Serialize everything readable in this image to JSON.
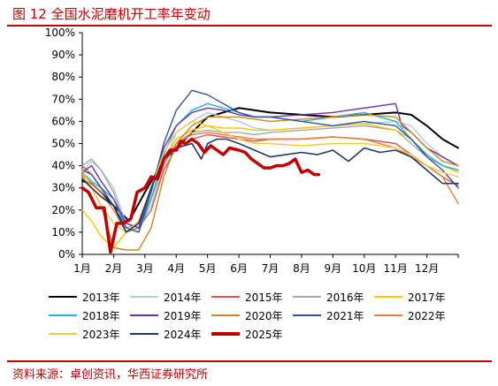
{
  "title": "图 12 全国水泥磨机开工率年变动",
  "source": "资料来源：卓创资讯，华西证券研究所",
  "chart_data": {
    "type": "line",
    "xlabel": "",
    "ylabel": "",
    "x_ticks": [
      "1月",
      "2月",
      "3月",
      "4月",
      "5月",
      "6月",
      "7月",
      "8月",
      "9月",
      "10月",
      "11月",
      "12月"
    ],
    "y_ticks": [
      "0%",
      "10%",
      "20%",
      "30%",
      "40%",
      "50%",
      "60%",
      "70%",
      "80%",
      "90%",
      "100%"
    ],
    "ylim": [
      0,
      100
    ],
    "xlim": [
      1,
      13
    ],
    "grid": false,
    "legend_position": "bottom",
    "series": [
      {
        "name": "2013年",
        "color": "#000000",
        "width": 2,
        "x": [
          1,
          1.3,
          1.6,
          2,
          2.5,
          3,
          3.5,
          4,
          4.5,
          5,
          6,
          7,
          8,
          9,
          10,
          11,
          11.5,
          12,
          12.5,
          13
        ],
        "y": [
          33,
          32,
          28,
          22,
          15,
          28,
          40,
          48,
          55,
          62,
          66,
          64,
          63,
          62,
          63,
          64,
          63,
          58,
          52,
          48
        ]
      },
      {
        "name": "2014年",
        "color": "#a9cce3",
        "width": 1.4,
        "x": [
          1,
          1.3,
          1.6,
          2,
          2.4,
          2.8,
          3.2,
          3.6,
          4,
          4.5,
          5,
          5.5,
          6,
          6.5,
          7,
          8,
          9,
          10,
          11,
          11.5,
          12,
          12.5,
          13
        ],
        "y": [
          37,
          42,
          38,
          30,
          14,
          12,
          22,
          40,
          55,
          60,
          64,
          62,
          60,
          57,
          56,
          57,
          58,
          59,
          60,
          58,
          50,
          44,
          40
        ]
      },
      {
        "name": "2015年",
        "color": "#e05252",
        "width": 1.4,
        "x": [
          1,
          1.3,
          1.6,
          2,
          2.4,
          2.8,
          3.2,
          3.6,
          4,
          4.5,
          5,
          5.5,
          6,
          6.5,
          7,
          8,
          9,
          10,
          11,
          11.5,
          12,
          12.5,
          13
        ],
        "y": [
          40,
          36,
          30,
          22,
          10,
          12,
          20,
          38,
          48,
          52,
          54,
          53,
          52,
          51,
          52,
          52,
          53,
          52,
          50,
          45,
          40,
          35,
          31
        ]
      },
      {
        "name": "2016年",
        "color": "#a6a6a6",
        "width": 1.4,
        "x": [
          1,
          1.3,
          1.6,
          2,
          2.4,
          2.8,
          3.2,
          3.6,
          4,
          4.5,
          5,
          5.5,
          6,
          6.5,
          7,
          8,
          9,
          10,
          11,
          11.5,
          12,
          12.5,
          13
        ],
        "y": [
          40,
          43,
          38,
          28,
          12,
          14,
          25,
          40,
          50,
          55,
          56,
          55,
          55,
          54,
          55,
          56,
          57,
          58,
          56,
          50,
          44,
          40,
          38
        ]
      },
      {
        "name": "2017年",
        "color": "#ffc000",
        "width": 1.4,
        "x": [
          1,
          1.3,
          1.6,
          2,
          2.4,
          2.8,
          3.2,
          3.6,
          4,
          4.5,
          5,
          5.5,
          6,
          6.5,
          7,
          8,
          9,
          10,
          11,
          11.5,
          12,
          12.5,
          13
        ],
        "y": [
          20,
          15,
          8,
          3,
          10,
          15,
          25,
          42,
          52,
          56,
          58,
          57,
          57,
          56,
          56,
          57,
          58,
          59,
          56,
          52,
          45,
          40,
          37
        ]
      },
      {
        "name": "2018年",
        "color": "#1fb2e6",
        "width": 1.4,
        "x": [
          1,
          1.3,
          1.6,
          2,
          2.4,
          2.8,
          3.2,
          3.6,
          4,
          4.5,
          5,
          5.5,
          6,
          6.5,
          7,
          8,
          9,
          10,
          11,
          11.5,
          12,
          12.5,
          13
        ],
        "y": [
          37,
          33,
          30,
          25,
          12,
          10,
          25,
          45,
          58,
          65,
          68,
          66,
          64,
          62,
          62,
          60,
          62,
          64,
          60,
          52,
          45,
          40,
          38
        ]
      },
      {
        "name": "2019年",
        "color": "#7030a0",
        "width": 1.4,
        "x": [
          1,
          1.3,
          1.6,
          2,
          2.4,
          2.8,
          3.2,
          3.6,
          4,
          4.5,
          5,
          5.5,
          6,
          6.5,
          7,
          8,
          9,
          10,
          11,
          11.2,
          11.5,
          12,
          12.5,
          13
        ],
        "y": [
          37,
          40,
          33,
          25,
          14,
          12,
          30,
          48,
          58,
          64,
          66,
          65,
          63,
          62,
          62,
          63,
          64,
          66,
          68,
          58,
          55,
          48,
          44,
          40
        ]
      },
      {
        "name": "2020年",
        "color": "#c98a1b",
        "width": 1.4,
        "x": [
          1,
          1.3,
          1.6,
          2,
          2.4,
          2.8,
          3.2,
          3.6,
          4,
          4.5,
          5,
          5.5,
          6,
          6.5,
          7,
          8,
          9,
          10,
          11,
          11.5,
          12,
          12.5,
          13
        ],
        "y": [
          35,
          30,
          22,
          3,
          2,
          2,
          12,
          35,
          50,
          58,
          62,
          62,
          62,
          61,
          60,
          61,
          62,
          63,
          62,
          55,
          48,
          42,
          40
        ]
      },
      {
        "name": "2021年",
        "color": "#2f5597",
        "width": 1.4,
        "x": [
          1,
          1.3,
          1.6,
          2,
          2.4,
          2.8,
          3.2,
          3.6,
          4,
          4.5,
          5,
          5.5,
          6,
          6.5,
          7,
          8,
          9,
          10,
          11,
          11.5,
          12,
          12.5,
          13
        ],
        "y": [
          38,
          36,
          30,
          22,
          12,
          10,
          28,
          50,
          65,
          74,
          72,
          68,
          64,
          62,
          62,
          60,
          58,
          60,
          58,
          52,
          44,
          38,
          30
        ]
      },
      {
        "name": "2022年",
        "color": "#ed7d31",
        "width": 1.4,
        "x": [
          1,
          1.3,
          1.6,
          2,
          2.4,
          2.8,
          3.2,
          3.6,
          4,
          4.5,
          5,
          5.5,
          6,
          6.5,
          7,
          8,
          9,
          10,
          11,
          11.5,
          12,
          12.5,
          13
        ],
        "y": [
          36,
          32,
          28,
          20,
          10,
          14,
          30,
          42,
          50,
          54,
          55,
          54,
          53,
          52,
          52,
          52,
          53,
          52,
          48,
          44,
          40,
          35,
          23
        ]
      },
      {
        "name": "2023年",
        "color": "#f5c842",
        "width": 1.4,
        "x": [
          1,
          1.3,
          1.6,
          2,
          2.4,
          2.8,
          3.2,
          3.6,
          4,
          4.5,
          5,
          5.5,
          6,
          6.5,
          7,
          8,
          9,
          10,
          11,
          11.5,
          12,
          12.5,
          13
        ],
        "y": [
          38,
          30,
          22,
          14,
          10,
          15,
          30,
          46,
          55,
          60,
          58,
          55,
          52,
          50,
          50,
          49,
          50,
          50,
          48,
          45,
          40,
          37,
          35
        ]
      },
      {
        "name": "2024年",
        "color": "#1f3864",
        "width": 1.6,
        "x": [
          1,
          1.3,
          1.6,
          2,
          2.4,
          2.8,
          3.2,
          3.6,
          4,
          4.5,
          4.8,
          5,
          5.3,
          5.6,
          6,
          6.5,
          7,
          7.5,
          8,
          8.5,
          9,
          9.5,
          10,
          10.5,
          11,
          11.5,
          12,
          12.5,
          13
        ],
        "y": [
          34,
          30,
          26,
          22,
          10,
          14,
          30,
          43,
          48,
          50,
          43,
          50,
          52,
          52,
          50,
          47,
          44,
          45,
          46,
          45,
          47,
          42,
          48,
          46,
          47,
          44,
          38,
          32,
          32
        ]
      },
      {
        "name": "2025年",
        "color": "#c00000",
        "width": 3.5,
        "x": [
          1,
          1.2,
          1.45,
          1.7,
          1.9,
          2.1,
          2.3,
          2.55,
          2.75,
          3,
          3.2,
          3.4,
          3.6,
          3.8,
          4,
          4.15,
          4.3,
          4.5,
          4.7,
          4.9,
          5.1,
          5.3,
          5.5,
          5.7,
          6,
          6.2,
          6.4,
          6.6,
          6.8,
          7,
          7.2,
          7.4,
          7.6,
          7.8,
          8,
          8.2,
          8.4,
          8.55
        ],
        "y": [
          30,
          28,
          21,
          21,
          1,
          14,
          14,
          16,
          28,
          30,
          35,
          34,
          43,
          47,
          47,
          51,
          50,
          52,
          50,
          46,
          49,
          47,
          45,
          48,
          47,
          46,
          43,
          41,
          39,
          39,
          40,
          40,
          41,
          43,
          37,
          38,
          36,
          36
        ]
      }
    ]
  }
}
